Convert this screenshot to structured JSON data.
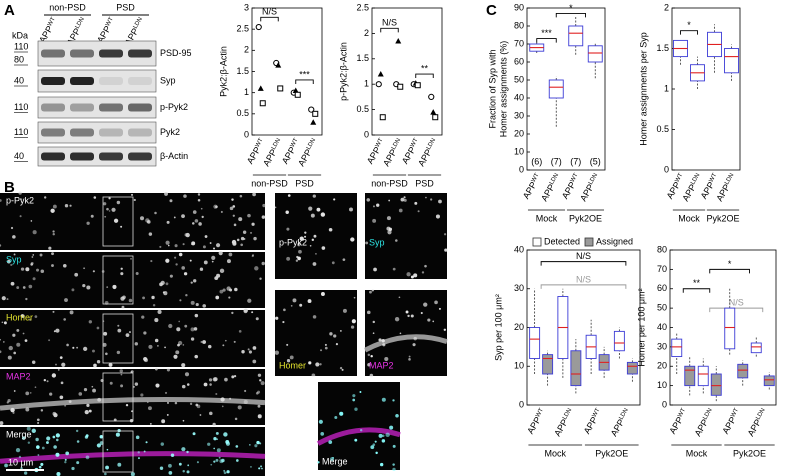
{
  "panel_labels": [
    "A",
    "B",
    "C"
  ],
  "blot": {
    "kda_label": "kDa",
    "groups": [
      "non-PSD",
      "PSD"
    ],
    "lanes": [
      "APP",
      "APP",
      "APP",
      "APP"
    ],
    "lane_superscripts": [
      "WT",
      "LDN",
      "WT",
      "LDN"
    ],
    "rows": [
      {
        "name": "PSD-95",
        "markers": [
          110,
          80
        ]
      },
      {
        "name": "Syp",
        "markers": [
          40
        ]
      },
      {
        "name": "p-Pyk2",
        "markers": [
          110
        ]
      },
      {
        "name": "Pyk2",
        "markers": [
          110
        ]
      },
      {
        "name": "β-Actin",
        "markers": [
          40
        ]
      }
    ]
  },
  "images": {
    "main_labels": [
      "p-Pyk2",
      "Syp",
      "Homer",
      "MAP2",
      "Merge"
    ],
    "scale_bar": "10 μm",
    "zoom_labels": [
      "p-Pyk2",
      "Syp",
      "Homer",
      "MAP2"
    ],
    "merge_label": "Merge"
  },
  "chart_data": [
    {
      "type": "scatter",
      "y_label": [
        "Pyk2:β-Actin"
      ],
      "categories": [
        "APP",
        "APP",
        "APP",
        "APP"
      ],
      "category_superscripts": [
        "WT",
        "LDN",
        "WT",
        "LDN"
      ],
      "groups": [
        "non-PSD",
        "PSD"
      ],
      "ylim": [
        0,
        3
      ],
      "yticks": [
        0,
        0.5,
        1,
        1.5,
        2,
        2.5,
        3
      ],
      "color": "#000000",
      "series": [
        {
          "marker": "circle",
          "values": [
            2.55,
            1.7,
            1.0,
            0.6
          ]
        },
        {
          "marker": "triangle",
          "values": [
            1.1,
            1.65,
            1.05,
            0.3
          ]
        },
        {
          "marker": "square",
          "values": [
            0.75,
            1.1,
            0.95,
            0.5
          ]
        }
      ],
      "annotations": [
        {
          "text": "N/S"
        },
        {
          "text": "***"
        }
      ]
    },
    {
      "type": "scatter",
      "y_label": [
        "p-Pyk2:β-Actin"
      ],
      "categories": [
        "APP",
        "APP",
        "APP",
        "APP"
      ],
      "category_superscripts": [
        "WT",
        "LDN",
        "WT",
        "LDN"
      ],
      "groups": [
        "non-PSD",
        "PSD"
      ],
      "ylim": [
        0,
        2.5
      ],
      "yticks": [
        0,
        0.5,
        1,
        1.5,
        2,
        2.5
      ],
      "color": "#000000",
      "series": [
        {
          "marker": "circle",
          "values": [
            1.0,
            1.0,
            1.0,
            0.75
          ]
        },
        {
          "marker": "triangle",
          "values": [
            1.2,
            1.85,
            1.02,
            0.45
          ]
        },
        {
          "marker": "square",
          "values": [
            0.35,
            0.95,
            0.98,
            0.35
          ]
        }
      ],
      "annotations": [
        {
          "text": "N/S"
        },
        {
          "text": "**"
        }
      ]
    },
    {
      "type": "box",
      "y_label": [
        "Fraction of Syp with",
        "Homer assignments (%)"
      ],
      "categories": [
        "APP",
        "APP",
        "APP",
        "APP"
      ],
      "category_superscripts": [
        "WT",
        "LDN",
        "WT",
        "LDN"
      ],
      "groups": [
        "Mock",
        "Pyk2OE"
      ],
      "ylim": [
        0,
        90
      ],
      "yticks": [
        0,
        10,
        20,
        30,
        40,
        50,
        60,
        70,
        80,
        90
      ],
      "n_labels": [
        "(6)",
        "(7)",
        "(7)",
        "(5)"
      ],
      "series": [
        {
          "color": "#ffffff",
          "values": [
            {
              "min": 65,
              "q1": 66,
              "median": 68,
              "q3": 70,
              "max": 71
            },
            {
              "min": 24,
              "q1": 40,
              "median": 46,
              "q3": 50,
              "max": 52
            },
            {
              "min": 64,
              "q1": 69,
              "median": 76,
              "q3": 80,
              "max": 85
            },
            {
              "min": 51,
              "q1": 60,
              "median": 65,
              "q3": 69,
              "max": 71
            }
          ]
        }
      ],
      "annotations": [
        {
          "text": "***"
        },
        {
          "text": "*"
        }
      ]
    },
    {
      "type": "box",
      "y_label": [
        "Homer assignments per Syp"
      ],
      "categories": [
        "APP",
        "APP",
        "APP",
        "APP"
      ],
      "category_superscripts": [
        "WT",
        "LDN",
        "WT",
        "LDN"
      ],
      "groups": [
        "Mock",
        "Pyk2OE"
      ],
      "ylim": [
        0,
        2
      ],
      "yticks": [
        0,
        0.5,
        1,
        1.5,
        2
      ],
      "series": [
        {
          "color": "#ffffff",
          "values": [
            {
              "min": 1.3,
              "q1": 1.4,
              "median": 1.5,
              "q3": 1.6,
              "max": 1.6
            },
            {
              "min": 1.0,
              "q1": 1.1,
              "median": 1.2,
              "q3": 1.3,
              "max": 1.4
            },
            {
              "min": 1.2,
              "q1": 1.4,
              "median": 1.55,
              "q3": 1.7,
              "max": 1.8
            },
            {
              "min": 1.1,
              "q1": 1.2,
              "median": 1.4,
              "q3": 1.5,
              "max": 1.55
            }
          ]
        }
      ],
      "annotations": [
        {
          "text": "*"
        }
      ]
    },
    {
      "type": "box",
      "y_label": [
        "Syp per 100 μm²"
      ],
      "categories": [
        "APP",
        "APP",
        "APP",
        "APP"
      ],
      "category_superscripts": [
        "WT",
        "LDN",
        "WT",
        "LDN"
      ],
      "groups": [
        "Mock",
        "Pyk2OE"
      ],
      "ylim": [
        0,
        40
      ],
      "yticks": [
        0,
        10,
        20,
        30,
        40
      ],
      "legend": "top",
      "series": [
        {
          "name": "Detected",
          "color": "#ffffff",
          "values": [
            {
              "min": 8,
              "q1": 12,
              "median": 17,
              "q3": 20,
              "max": 30
            },
            {
              "min": 7,
              "q1": 12,
              "median": 20,
              "q3": 28,
              "max": 30
            },
            {
              "min": 8,
              "q1": 12,
              "median": 15,
              "q3": 18,
              "max": 22
            },
            {
              "min": 12,
              "q1": 14,
              "median": 16,
              "q3": 19,
              "max": 20
            }
          ]
        },
        {
          "name": "Assigned",
          "color": "#9a9a9a",
          "values": [
            {
              "min": 5,
              "q1": 8,
              "median": 12,
              "q3": 13,
              "max": 14
            },
            {
              "min": 3,
              "q1": 5,
              "median": 8,
              "q3": 14,
              "max": 17
            },
            {
              "min": 7,
              "q1": 9,
              "median": 11,
              "q3": 13,
              "max": 15
            },
            {
              "min": 6,
              "q1": 8,
              "median": 10,
              "q3": 11,
              "max": 12
            }
          ]
        }
      ],
      "annotations": [
        {
          "text": "N/S"
        },
        {
          "text": "N/S",
          "color": "#999999"
        }
      ]
    },
    {
      "type": "box",
      "y_label": [
        "Homer per 100 μm²"
      ],
      "categories": [
        "APP",
        "APP",
        "APP",
        "APP"
      ],
      "category_superscripts": [
        "WT",
        "LDN",
        "WT",
        "LDN"
      ],
      "groups": [
        "Mock",
        "Pyk2OE"
      ],
      "ylim": [
        0,
        80
      ],
      "yticks": [
        0,
        10,
        20,
        30,
        40,
        50,
        60,
        70,
        80
      ],
      "series": [
        {
          "color": "#ffffff",
          "values": [
            {
              "min": 16,
              "q1": 25,
              "median": 30,
              "q3": 34,
              "max": 37
            },
            {
              "min": 6,
              "q1": 10,
              "median": 16,
              "q3": 20,
              "max": 24
            },
            {
              "min": 26,
              "q1": 29,
              "median": 40,
              "q3": 50,
              "max": 60
            },
            {
              "min": 25,
              "q1": 27,
              "median": 30,
              "q3": 32,
              "max": 35
            }
          ]
        },
        {
          "color": "#9a9a9a",
          "values": [
            {
              "min": 5,
              "q1": 10,
              "median": 18,
              "q3": 20,
              "max": 25
            },
            {
              "min": 2,
              "q1": 5,
              "median": 10,
              "q3": 16,
              "max": 20
            },
            {
              "min": 10,
              "q1": 14,
              "median": 18,
              "q3": 21,
              "max": 23
            },
            {
              "min": 8,
              "q1": 10,
              "median": 13,
              "q3": 15,
              "max": 17
            }
          ]
        }
      ],
      "annotations": [
        {
          "text": "**"
        },
        {
          "text": "*"
        },
        {
          "text": "N/S",
          "color": "#999999"
        }
      ]
    }
  ]
}
